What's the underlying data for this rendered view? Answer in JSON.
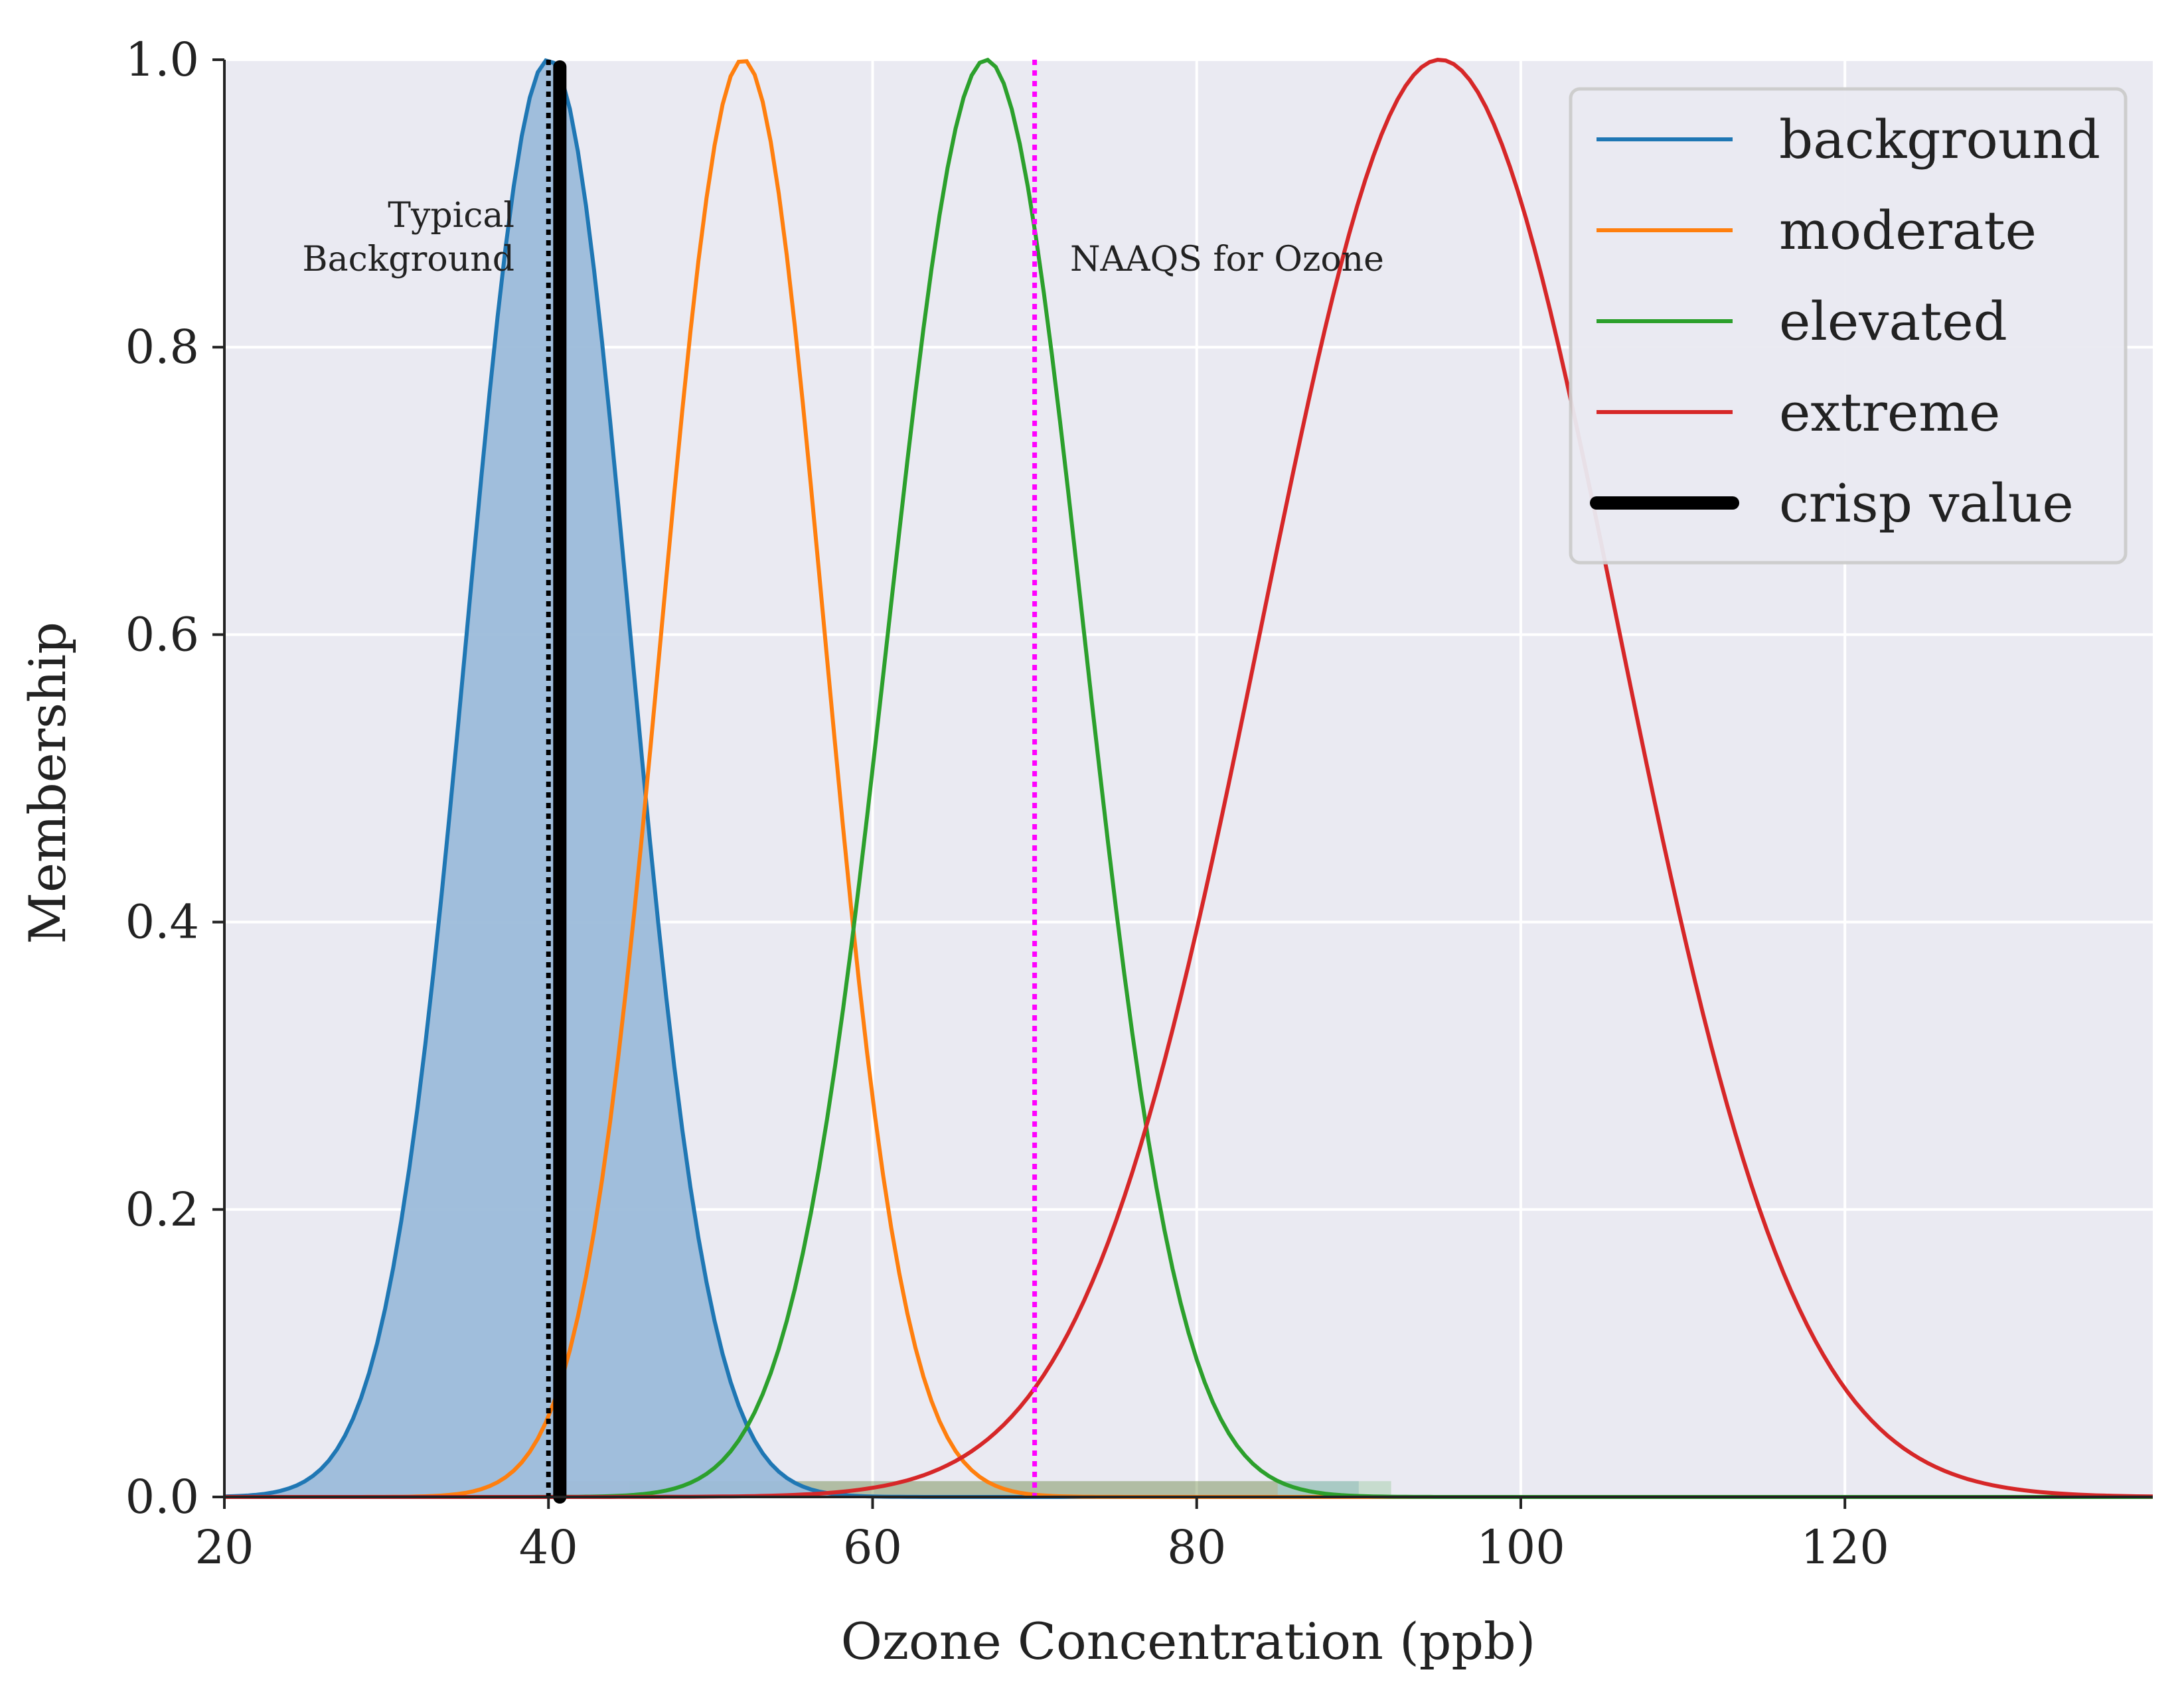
{
  "chart_data": {
    "type": "line",
    "xlabel": "Ozone Concentration (ppb)",
    "ylabel": "Membership",
    "xlim": [
      20,
      139
    ],
    "ylim": [
      0,
      1
    ],
    "x_ticks": [
      20,
      40,
      60,
      80,
      100,
      120
    ],
    "y_ticks": [
      0.0,
      0.2,
      0.4,
      0.6,
      0.8,
      1.0
    ],
    "x_tick_labels": [
      "20",
      "40",
      "60",
      "80",
      "100",
      "120"
    ],
    "y_tick_labels": [
      "0.0",
      "0.2",
      "0.4",
      "0.6",
      "0.8",
      "1.0"
    ],
    "grid": true,
    "legend_position": "top-right",
    "series": [
      {
        "name": "background",
        "kind": "gaussian",
        "mean": 40,
        "sigma": 5,
        "color": "#1f77b4",
        "filled": true
      },
      {
        "name": "moderate",
        "kind": "gaussian",
        "mean": 52,
        "sigma": 5,
        "color": "#ff7f0e"
      },
      {
        "name": "elevated",
        "kind": "gaussian",
        "mean": 67,
        "sigma": 6,
        "color": "#2ca02c"
      },
      {
        "name": "extreme",
        "kind": "gaussian",
        "mean": 95,
        "sigma": 11,
        "color": "#d62728"
      },
      {
        "name": "crisp value",
        "kind": "vline",
        "x": 40.7,
        "color": "#000000"
      }
    ],
    "reference_lines": [
      {
        "x": 40,
        "style": "dotted",
        "color": "#000000",
        "label": "Typical\nBackground"
      },
      {
        "x": 70,
        "style": "dotted",
        "color": "#ff00ff",
        "label": "NAAQS for Ozone"
      }
    ],
    "colors": {
      "plot_background": "#eaeaf2",
      "grid": "#ffffff",
      "background_fill": "#9cbcda"
    }
  }
}
